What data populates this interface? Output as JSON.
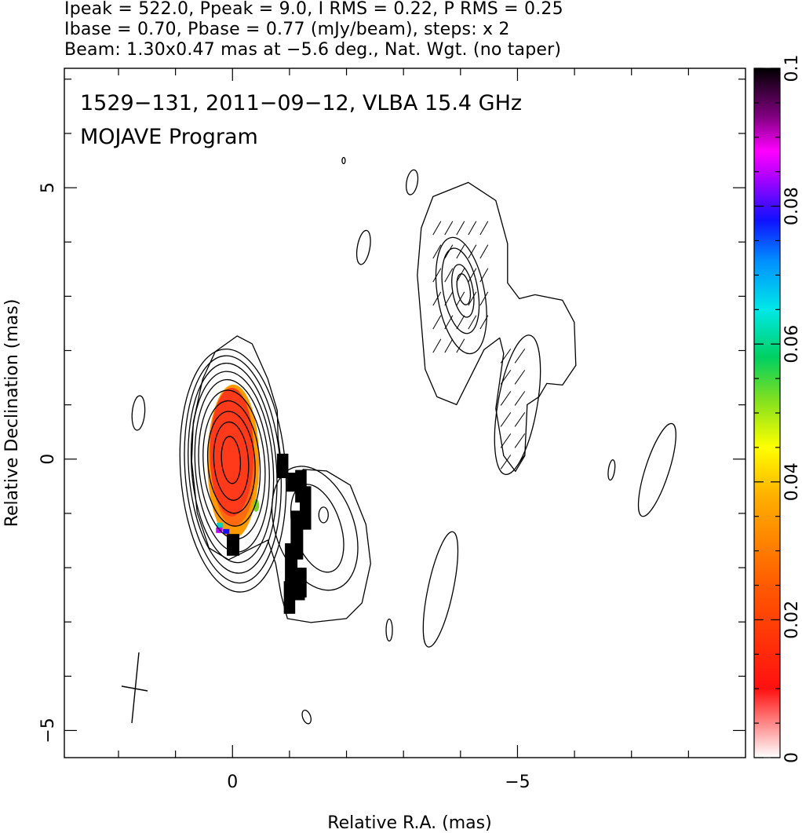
{
  "header": {
    "line1": "Ipeak = 522.0, Ppeak = 9.0, I RMS = 0.22, P RMS = 0.25",
    "line2": "Ibase = 0.70, Pbase = 0.77 (mJy/beam), steps: x 2",
    "line3": "Beam: 1.30x0.47 mas at −5.6 deg., Nat. Wgt. (no taper)"
  },
  "chart_data": {
    "type": "heatmap",
    "title": "1529−131, 2011−09−12, VLBA 15.4 GHz",
    "subtitle": "MOJAVE Program",
    "xlabel": "Relative R.A. (mas)",
    "ylabel": "Relative Declination (mas)",
    "xlim": [
      2.95,
      -9.0
    ],
    "ylim": [
      -5.5,
      7.2
    ],
    "x_ticks": [
      {
        "value": 0,
        "label": "0"
      },
      {
        "value": -5,
        "label": "−5"
      }
    ],
    "y_ticks": [
      {
        "value": 5,
        "label": "5"
      },
      {
        "value": 0,
        "label": "0"
      },
      {
        "value": -5,
        "label": "−5"
      }
    ],
    "colorbar": {
      "min": 0,
      "max": 0.1,
      "ticks": [
        {
          "value": 0,
          "label": "0"
        },
        {
          "value": 0.02,
          "label": "0.02"
        },
        {
          "value": 0.04,
          "label": "0.04"
        },
        {
          "value": 0.06,
          "label": "0.06"
        },
        {
          "value": 0.08,
          "label": "0.08"
        },
        {
          "value": 0.1,
          "label": "0.1"
        }
      ]
    },
    "core_peak": {
      "x": 0.0,
      "y": 0.1
    },
    "components": [
      {
        "x": -4.0,
        "y": 3.1
      },
      {
        "x": -1.5,
        "y": -1.3
      },
      {
        "x": -5.0,
        "y": 0.8
      }
    ],
    "beam": {
      "major_mas": 1.3,
      "minor_mas": 0.47,
      "pa_deg": -5.6
    }
  },
  "colors": {
    "contour": "#000000",
    "polarization_core": "#ff3a1a",
    "polarization_edge": "#ff9900",
    "polarization_low": "#000000"
  }
}
